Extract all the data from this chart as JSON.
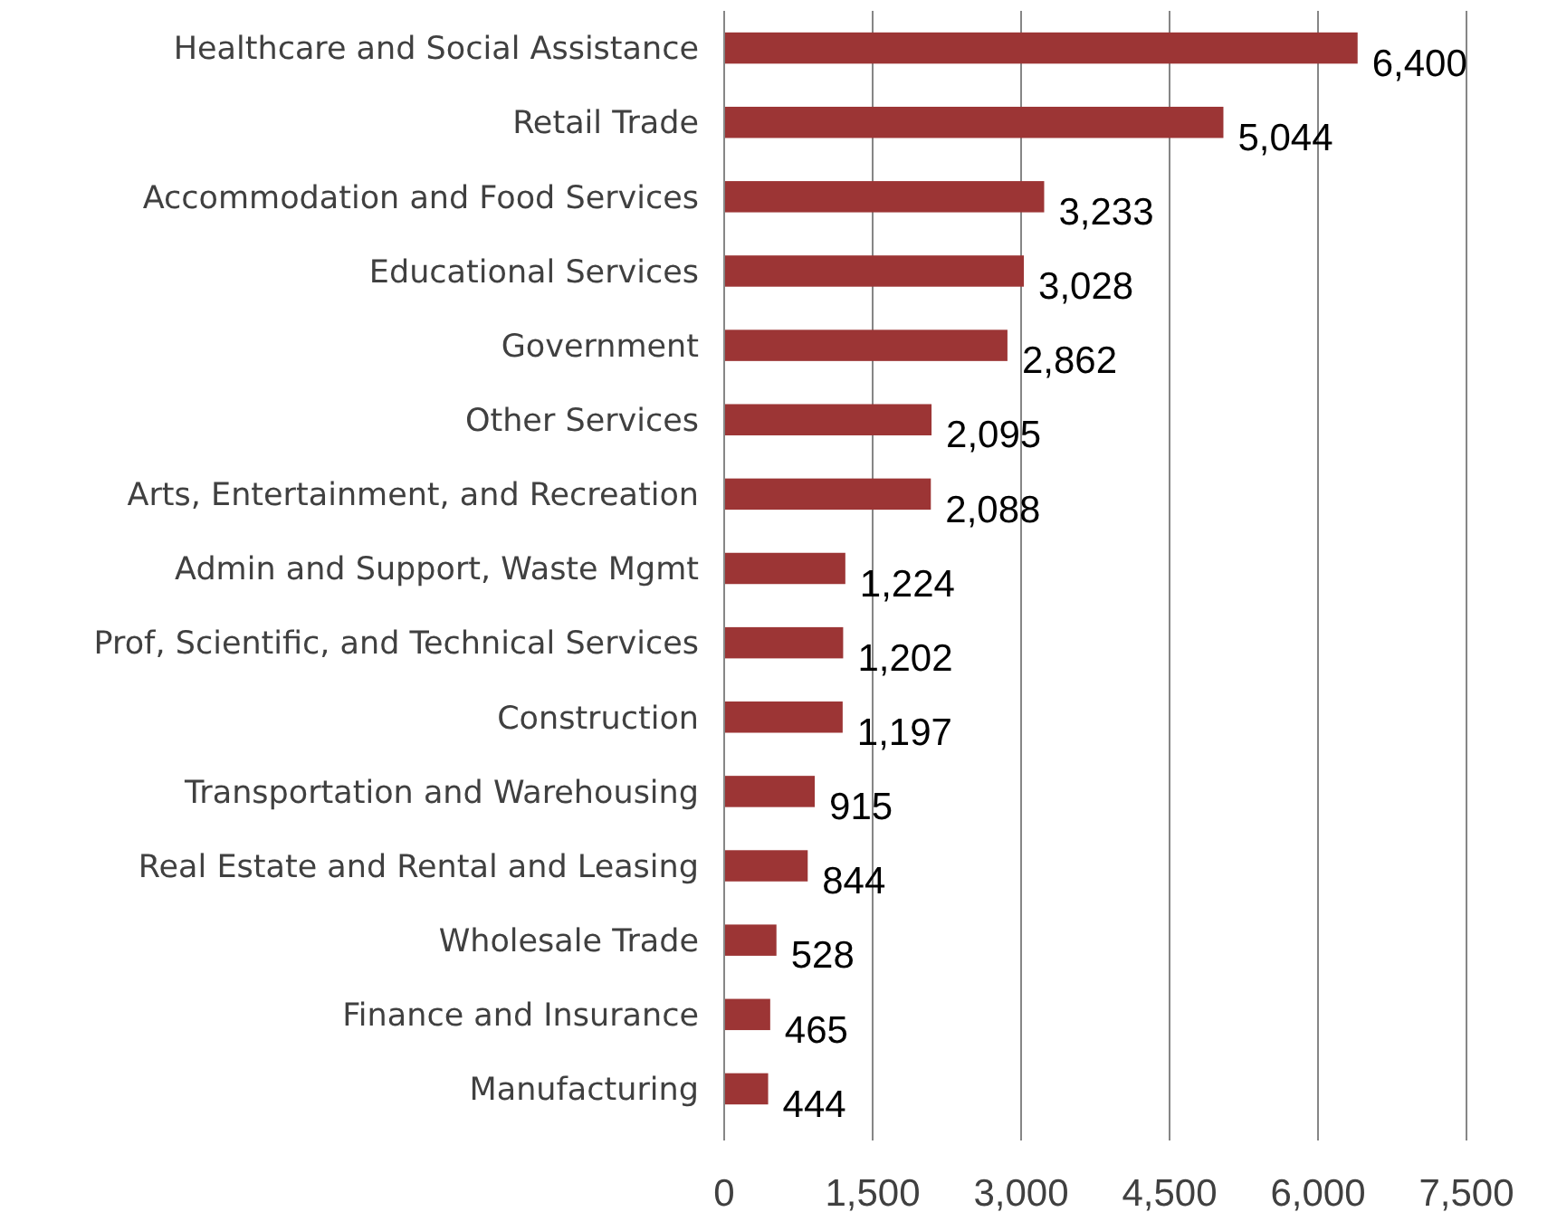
{
  "chart_data": {
    "type": "bar",
    "orientation": "horizontal",
    "categories": [
      "Healthcare and Social Assistance",
      "Retail Trade",
      "Accommodation and Food Services",
      "Educational Services",
      "Government",
      "Other Services",
      "Arts, Entertainment, and Recreation",
      "Admin and Support, Waste Mgmt",
      "Prof, Scientific, and Technical Services",
      "Construction",
      "Transportation and Warehousing",
      "Real Estate and Rental and Leasing",
      "Wholesale Trade",
      "Finance and Insurance",
      "Manufacturing"
    ],
    "values": [
      6400,
      5044,
      3233,
      3028,
      2862,
      2095,
      2088,
      1224,
      1202,
      1197,
      915,
      844,
      528,
      465,
      444
    ],
    "color": "#9c3535",
    "xlim": [
      0,
      7500
    ],
    "xticks": [
      {
        "value": 0,
        "label": "0"
      },
      {
        "value": 1500,
        "label": "1,500"
      },
      {
        "value": 3000,
        "label": "3,000"
      },
      {
        "value": 4500,
        "label": "4,500"
      },
      {
        "value": 6000,
        "label": "6,000"
      },
      {
        "value": 7500,
        "label": "7,500"
      }
    ],
    "value_labels": [
      "6,400",
      "5,044",
      "3,233",
      "3,028",
      "2,862",
      "2,095",
      "2,088",
      "1,224",
      "1,202",
      "1,197",
      "915",
      "844",
      "528",
      "465",
      "444"
    ],
    "grid": "x"
  }
}
